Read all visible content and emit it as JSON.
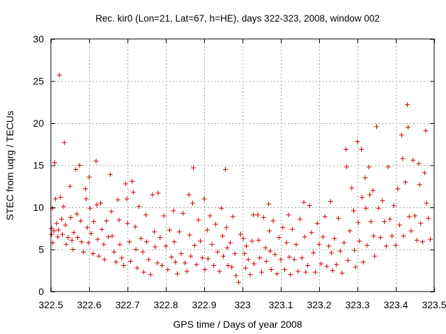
{
  "chart_data": {
    "type": "scatter",
    "title": "Rec. kir0 (Lon=21, Lat=67, h=HE), days 322-323, 2008, window 002",
    "xlabel": "GPS time / Days of year 2008",
    "ylabel": "STEC from uqrg / TECUs",
    "xlim": [
      322.5,
      323.5
    ],
    "ylim": [
      0,
      30
    ],
    "xticks": [
      322.5,
      322.6,
      322.7,
      322.8,
      322.9,
      323,
      323.1,
      323.2,
      323.3,
      323.4,
      323.5
    ],
    "xtick_labels": [
      "322.5",
      "322.6",
      "322.7",
      "322.8",
      "322.9",
      "323",
      "323.1",
      "323.2",
      "323.3",
      "323.4",
      "323.5"
    ],
    "yticks": [
      0,
      5,
      10,
      15,
      20,
      25,
      30
    ],
    "ytick_labels": [
      "0",
      "5",
      "10",
      "15",
      "20",
      "25",
      "30"
    ],
    "grid": true,
    "marker": "+",
    "color": "#cc0000",
    "series": [
      {
        "points": [
          [
            322.502,
            7.5
          ],
          [
            322.502,
            6.8
          ],
          [
            322.504,
            9.9
          ],
          [
            322.505,
            5.8
          ],
          [
            322.508,
            7.2
          ],
          [
            322.51,
            15.3
          ],
          [
            322.512,
            11.0
          ],
          [
            322.515,
            8.1
          ],
          [
            322.518,
            6.5
          ],
          [
            322.52,
            7.3
          ],
          [
            322.522,
            25.7
          ],
          [
            322.525,
            11.2
          ],
          [
            322.528,
            8.6
          ],
          [
            322.53,
            6.8
          ],
          [
            322.533,
            10.1
          ],
          [
            322.535,
            17.7
          ],
          [
            322.538,
            7.9
          ],
          [
            322.54,
            5.6
          ],
          [
            322.545,
            6.4
          ],
          [
            322.55,
            12.5
          ],
          [
            322.552,
            8.8
          ],
          [
            322.555,
            6.1
          ],
          [
            322.558,
            5.0
          ],
          [
            322.56,
            7.0
          ],
          [
            322.565,
            14.5
          ],
          [
            322.568,
            9.2
          ],
          [
            322.57,
            6.4
          ],
          [
            322.575,
            15.0
          ],
          [
            322.578,
            8.4
          ],
          [
            322.58,
            5.9
          ],
          [
            322.585,
            4.7
          ],
          [
            322.59,
            12.2
          ],
          [
            322.592,
            11.0
          ],
          [
            322.595,
            7.6
          ],
          [
            322.598,
            5.8
          ],
          [
            322.6,
            13.6
          ],
          [
            322.602,
            9.9
          ],
          [
            322.605,
            6.9
          ],
          [
            322.61,
            4.5
          ],
          [
            322.612,
            8.3
          ],
          [
            322.618,
            15.5
          ],
          [
            322.62,
            10.3
          ],
          [
            322.622,
            6.2
          ],
          [
            322.625,
            4.2
          ],
          [
            322.63,
            10.5
          ],
          [
            322.633,
            7.4
          ],
          [
            322.638,
            5.6
          ],
          [
            322.64,
            3.8
          ],
          [
            322.645,
            8.4
          ],
          [
            322.65,
            6.5
          ],
          [
            322.655,
            13.9
          ],
          [
            322.658,
            9.5
          ],
          [
            322.66,
            6.6
          ],
          [
            322.665,
            4.7
          ],
          [
            322.67,
            3.5
          ],
          [
            322.675,
            10.9
          ],
          [
            322.678,
            8.5
          ],
          [
            322.68,
            5.6
          ],
          [
            322.685,
            4.0
          ],
          [
            322.69,
            3.1
          ],
          [
            322.695,
            12.8
          ],
          [
            322.698,
            11.0
          ],
          [
            322.7,
            8.1
          ],
          [
            322.705,
            5.9
          ],
          [
            322.708,
            3.6
          ],
          [
            322.712,
            13.1
          ],
          [
            322.715,
            11.8
          ],
          [
            322.72,
            7.7
          ],
          [
            322.722,
            5.0
          ],
          [
            322.725,
            2.8
          ],
          [
            322.73,
            10.1
          ],
          [
            322.735,
            6.3
          ],
          [
            322.74,
            4.7
          ],
          [
            322.742,
            2.3
          ],
          [
            322.748,
            9.1
          ],
          [
            322.75,
            5.9
          ],
          [
            322.755,
            3.8
          ],
          [
            322.76,
            2.0
          ],
          [
            322.765,
            11.5
          ],
          [
            322.77,
            7.1
          ],
          [
            322.772,
            5.3
          ],
          [
            322.778,
            3.4
          ],
          [
            322.78,
            11.7
          ],
          [
            322.785,
            6.4
          ],
          [
            322.79,
            3.1
          ],
          [
            322.795,
            9.0
          ],
          [
            322.8,
            5.4
          ],
          [
            322.805,
            2.6
          ],
          [
            322.81,
            7.3
          ],
          [
            322.815,
            4.1
          ],
          [
            322.82,
            9.6
          ],
          [
            322.822,
            5.9
          ],
          [
            322.825,
            3.5
          ],
          [
            322.83,
            2.1
          ],
          [
            322.835,
            7.1
          ],
          [
            322.84,
            4.5
          ],
          [
            322.845,
            9.3
          ],
          [
            322.85,
            3.4
          ],
          [
            322.855,
            2.4
          ],
          [
            322.86,
            11.5
          ],
          [
            322.862,
            6.7
          ],
          [
            322.865,
            4.2
          ],
          [
            322.87,
            10.5
          ],
          [
            322.872,
            14.7
          ],
          [
            322.875,
            5.5
          ],
          [
            322.88,
            3.2
          ],
          [
            322.885,
            8.5
          ],
          [
            322.89,
            6.0
          ],
          [
            322.895,
            4.0
          ],
          [
            322.9,
            11.0
          ],
          [
            322.902,
            2.6
          ],
          [
            322.908,
            7.3
          ],
          [
            322.91,
            3.9
          ],
          [
            322.915,
            9.0
          ],
          [
            322.92,
            5.6
          ],
          [
            322.925,
            3.1
          ],
          [
            322.93,
            8.0
          ],
          [
            322.935,
            4.7
          ],
          [
            322.94,
            2.4
          ],
          [
            322.945,
            9.9
          ],
          [
            322.948,
            6.6
          ],
          [
            322.95,
            4.2
          ],
          [
            322.955,
            14.5
          ],
          [
            322.958,
            7.6
          ],
          [
            322.96,
            5.2
          ],
          [
            322.962,
            3.1
          ],
          [
            322.968,
            5.8
          ],
          [
            322.972,
            2.9
          ],
          [
            322.975,
            8.9
          ],
          [
            322.98,
            4.5
          ],
          [
            322.983,
            1.9
          ],
          [
            322.99,
            1.1
          ],
          [
            322.995,
            6.8
          ],
          [
            323.002,
            6.3
          ],
          [
            323.005,
            4.5
          ],
          [
            323.008,
            2.8
          ],
          [
            323.01,
            5.4
          ],
          [
            323.015,
            3.8
          ],
          [
            323.02,
            2.0
          ],
          [
            323.025,
            6.0
          ],
          [
            323.028,
            9.1
          ],
          [
            323.03,
            3.3
          ],
          [
            323.04,
            9.1
          ],
          [
            323.042,
            6.1
          ],
          [
            323.045,
            4.0
          ],
          [
            323.05,
            2.3
          ],
          [
            323.055,
            8.8
          ],
          [
            323.06,
            5.2
          ],
          [
            323.062,
            3.6
          ],
          [
            323.068,
            10.4
          ],
          [
            323.07,
            7.2
          ],
          [
            323.072,
            4.8
          ],
          [
            323.075,
            2.6
          ],
          [
            323.08,
            8.4
          ],
          [
            323.085,
            4.4
          ],
          [
            323.09,
            2.1
          ],
          [
            323.095,
            6.4
          ],
          [
            323.1,
            3.8
          ],
          [
            323.105,
            7.6
          ],
          [
            323.11,
            2.6
          ],
          [
            323.115,
            5.8
          ],
          [
            323.12,
            9.1
          ],
          [
            323.122,
            4.1
          ],
          [
            323.125,
            2.0
          ],
          [
            323.13,
            7.4
          ],
          [
            323.135,
            3.8
          ],
          [
            323.14,
            5.6
          ],
          [
            323.145,
            2.4
          ],
          [
            323.15,
            8.6
          ],
          [
            323.155,
            4.0
          ],
          [
            323.16,
            10.6
          ],
          [
            323.162,
            6.5
          ],
          [
            323.165,
            2.3
          ],
          [
            323.17,
            3.1
          ],
          [
            323.175,
            10.2
          ],
          [
            323.18,
            7.0
          ],
          [
            323.185,
            4.6
          ],
          [
            323.19,
            2.3
          ],
          [
            323.195,
            8.1
          ],
          [
            323.2,
            5.6
          ],
          [
            323.205,
            3.3
          ],
          [
            323.21,
            6.5
          ],
          [
            323.215,
            8.9
          ],
          [
            323.22,
            3.0
          ],
          [
            323.225,
            5.4
          ],
          [
            323.23,
            10.7
          ],
          [
            323.232,
            4.6
          ],
          [
            323.235,
            2.5
          ],
          [
            323.24,
            6.3
          ],
          [
            323.245,
            3.2
          ],
          [
            323.25,
            8.7
          ],
          [
            323.255,
            4.8
          ],
          [
            323.26,
            2.2
          ],
          [
            323.265,
            5.8
          ],
          [
            323.27,
            16.9
          ],
          [
            323.272,
            14.8
          ],
          [
            323.275,
            3.7
          ],
          [
            323.28,
            7.2
          ],
          [
            323.285,
            12.3
          ],
          [
            323.29,
            9.6
          ],
          [
            323.292,
            4.9
          ],
          [
            323.295,
            2.9
          ],
          [
            323.3,
            17.8
          ],
          [
            323.302,
            8.2
          ],
          [
            323.305,
            6.0
          ],
          [
            323.31,
            16.9
          ],
          [
            323.312,
            11.2
          ],
          [
            323.315,
            3.5
          ],
          [
            323.32,
            13.5
          ],
          [
            323.322,
            9.9
          ],
          [
            323.325,
            5.5
          ],
          [
            323.33,
            14.8
          ],
          [
            323.332,
            11.5
          ],
          [
            323.335,
            8.3
          ],
          [
            323.34,
            12.0
          ],
          [
            323.342,
            6.6
          ],
          [
            323.345,
            4.2
          ],
          [
            323.35,
            19.6
          ],
          [
            323.355,
            9.9
          ],
          [
            323.36,
            6.4
          ],
          [
            323.365,
            10.8
          ],
          [
            323.37,
            8.3
          ],
          [
            323.375,
            5.4
          ],
          [
            323.38,
            14.8
          ],
          [
            323.385,
            8.6
          ],
          [
            323.39,
            6.6
          ],
          [
            323.395,
            10.2
          ],
          [
            323.4,
            5.5
          ],
          [
            323.405,
            12.2
          ],
          [
            323.41,
            7.9
          ],
          [
            323.415,
            18.6
          ],
          [
            323.418,
            15.8
          ],
          [
            323.42,
            6.6
          ],
          [
            323.425,
            13.0
          ],
          [
            323.43,
            22.2
          ],
          [
            323.432,
            19.5
          ],
          [
            323.435,
            8.9
          ],
          [
            323.44,
            7.2
          ],
          [
            323.445,
            15.6
          ],
          [
            323.45,
            9.0
          ],
          [
            323.455,
            6.1
          ],
          [
            323.46,
            15.2
          ],
          [
            323.462,
            12.7
          ],
          [
            323.465,
            8.1
          ],
          [
            323.47,
            5.9
          ],
          [
            323.475,
            14.1
          ],
          [
            323.478,
            19.1
          ],
          [
            323.48,
            10.5
          ],
          [
            323.485,
            8.7
          ],
          [
            323.49,
            6.2
          ]
        ]
      }
    ]
  }
}
